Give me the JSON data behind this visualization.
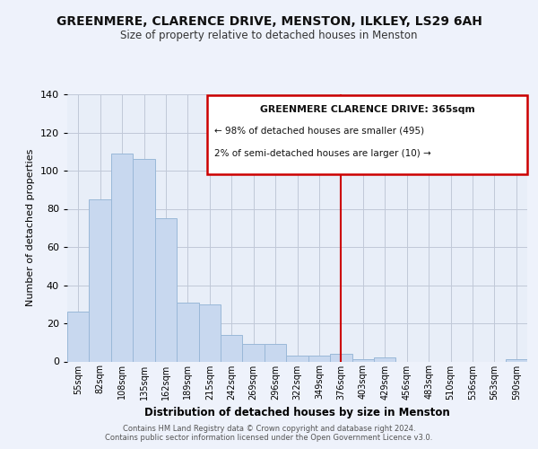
{
  "title": "GREENMERE, CLARENCE DRIVE, MENSTON, ILKLEY, LS29 6AH",
  "subtitle": "Size of property relative to detached houses in Menston",
  "xlabel": "Distribution of detached houses by size in Menston",
  "ylabel": "Number of detached properties",
  "bar_labels": [
    "55sqm",
    "82sqm",
    "108sqm",
    "135sqm",
    "162sqm",
    "189sqm",
    "215sqm",
    "242sqm",
    "269sqm",
    "296sqm",
    "322sqm",
    "349sqm",
    "376sqm",
    "403sqm",
    "429sqm",
    "456sqm",
    "483sqm",
    "510sqm",
    "536sqm",
    "563sqm",
    "590sqm"
  ],
  "bar_values": [
    26,
    85,
    109,
    106,
    75,
    31,
    30,
    14,
    9,
    9,
    3,
    3,
    4,
    1,
    2,
    0,
    0,
    0,
    0,
    0,
    1
  ],
  "bar_color": "#c8d8ef",
  "bar_edge_color": "#9ab8d8",
  "reference_line_x": 12.0,
  "reference_line_color": "#cc0000",
  "annotation_title": "GREENMERE CLARENCE DRIVE: 365sqm",
  "annotation_line1": "← 98% of detached houses are smaller (495)",
  "annotation_line2": "2% of semi-detached houses are larger (10) →",
  "annotation_box_color": "#ffffff",
  "annotation_box_edge_color": "#cc0000",
  "ylim": [
    0,
    140
  ],
  "yticks": [
    0,
    20,
    40,
    60,
    80,
    100,
    120,
    140
  ],
  "footer_line1": "Contains HM Land Registry data © Crown copyright and database right 2024.",
  "footer_line2": "Contains public sector information licensed under the Open Government Licence v3.0.",
  "background_color": "#eef2fb",
  "axes_background_color": "#e8eef8"
}
